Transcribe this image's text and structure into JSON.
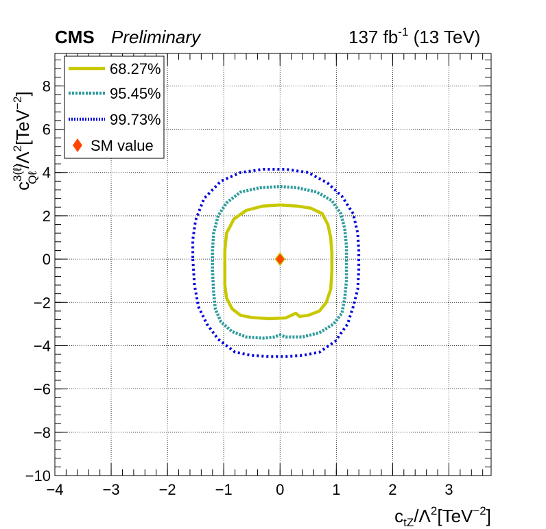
{
  "header": {
    "experiment": "CMS",
    "status": "Preliminary",
    "lumi_value": "137 fb",
    "lumi_exp": "-1",
    "energy": " (13 TeV)"
  },
  "chart_data": {
    "type": "scatter",
    "title": "",
    "xlabel": "c_tZ/Λ²[TeV⁻²]",
    "ylabel": "c_Qℓ^3(ℓ)/Λ²[TeV⁻²]",
    "xlim": [
      -4,
      3.75
    ],
    "ylim": [
      -10,
      9.5
    ],
    "x_ticks": [
      -4,
      -3,
      -2,
      -1,
      0,
      1,
      2,
      3
    ],
    "y_ticks": [
      -10,
      -8,
      -6,
      -4,
      -2,
      0,
      2,
      4,
      6,
      8
    ],
    "grid": true,
    "legend_position": "top-left",
    "series": [
      {
        "name": "68.27%",
        "style": "solid",
        "color": "#c8c800",
        "points": [
          [
            -0.98,
            -0.4
          ],
          [
            -0.98,
            -1.2
          ],
          [
            -0.95,
            -1.8
          ],
          [
            -0.85,
            -2.3
          ],
          [
            -0.7,
            -2.6
          ],
          [
            -0.5,
            -2.7
          ],
          [
            -0.2,
            -2.75
          ],
          [
            0.1,
            -2.72
          ],
          [
            0.2,
            -2.6
          ],
          [
            0.28,
            -2.5
          ],
          [
            0.35,
            -2.65
          ],
          [
            0.5,
            -2.6
          ],
          [
            0.7,
            -2.4
          ],
          [
            0.82,
            -2.0
          ],
          [
            0.9,
            -1.4
          ],
          [
            0.92,
            -0.6
          ],
          [
            0.92,
            0.3
          ],
          [
            0.9,
            1.0
          ],
          [
            0.85,
            1.6
          ],
          [
            0.75,
            2.1
          ],
          [
            0.55,
            2.35
          ],
          [
            0.3,
            2.45
          ],
          [
            0.0,
            2.5
          ],
          [
            -0.3,
            2.45
          ],
          [
            -0.6,
            2.25
          ],
          [
            -0.82,
            1.85
          ],
          [
            -0.95,
            1.2
          ],
          [
            -0.98,
            0.4
          ],
          [
            -0.98,
            -0.4
          ]
        ]
      },
      {
        "name": "95.45%",
        "style": "dashed",
        "color": "#2e9c9c",
        "points": [
          [
            -1.2,
            -0.5
          ],
          [
            -1.18,
            -1.5
          ],
          [
            -1.15,
            -2.3
          ],
          [
            -1.05,
            -2.9
          ],
          [
            -0.85,
            -3.35
          ],
          [
            -0.6,
            -3.6
          ],
          [
            -0.3,
            -3.65
          ],
          [
            -0.1,
            -3.6
          ],
          [
            0.0,
            -3.5
          ],
          [
            0.1,
            -3.6
          ],
          [
            0.4,
            -3.6
          ],
          [
            0.7,
            -3.4
          ],
          [
            0.95,
            -3.0
          ],
          [
            1.1,
            -2.5
          ],
          [
            1.15,
            -1.8
          ],
          [
            1.18,
            -1.0
          ],
          [
            1.18,
            -0.2
          ],
          [
            1.18,
            0.6
          ],
          [
            1.15,
            1.4
          ],
          [
            1.08,
            2.1
          ],
          [
            0.92,
            2.7
          ],
          [
            0.65,
            3.1
          ],
          [
            0.3,
            3.3
          ],
          [
            0.0,
            3.35
          ],
          [
            -0.35,
            3.3
          ],
          [
            -0.7,
            3.1
          ],
          [
            -0.95,
            2.6
          ],
          [
            -1.1,
            2.0
          ],
          [
            -1.18,
            1.2
          ],
          [
            -1.2,
            0.4
          ],
          [
            -1.2,
            -0.5
          ]
        ]
      },
      {
        "name": "99.73%",
        "style": "dotted",
        "color": "#0000dd",
        "points": [
          [
            -1.55,
            0.0
          ],
          [
            -1.52,
            -1.2
          ],
          [
            -1.45,
            -2.2
          ],
          [
            -1.3,
            -3.0
          ],
          [
            -1.1,
            -3.7
          ],
          [
            -0.8,
            -4.3
          ],
          [
            -0.5,
            -4.45
          ],
          [
            -0.2,
            -4.5
          ],
          [
            0.1,
            -4.5
          ],
          [
            0.4,
            -4.45
          ],
          [
            0.7,
            -4.3
          ],
          [
            0.98,
            -3.8
          ],
          [
            1.2,
            -3.0
          ],
          [
            1.3,
            -2.2
          ],
          [
            1.38,
            -1.4
          ],
          [
            1.4,
            -0.5
          ],
          [
            1.4,
            0.4
          ],
          [
            1.38,
            1.2
          ],
          [
            1.3,
            2.1
          ],
          [
            1.1,
            2.9
          ],
          [
            0.85,
            3.5
          ],
          [
            0.5,
            4.0
          ],
          [
            0.1,
            4.15
          ],
          [
            -0.3,
            4.15
          ],
          [
            -0.7,
            4.0
          ],
          [
            -1.05,
            3.6
          ],
          [
            -1.35,
            2.8
          ],
          [
            -1.5,
            1.8
          ],
          [
            -1.55,
            0.9
          ],
          [
            -1.55,
            0.0
          ]
        ]
      },
      {
        "name": "SM value",
        "style": "marker",
        "color": "#ff4500",
        "points": [
          [
            0,
            0
          ]
        ]
      }
    ]
  }
}
